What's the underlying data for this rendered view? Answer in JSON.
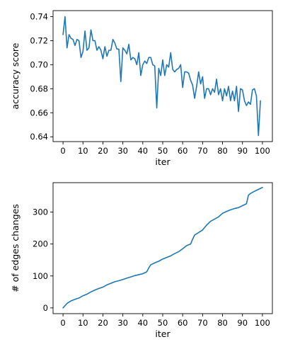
{
  "colors": {
    "series": "#1f77b4"
  },
  "chart_data": [
    {
      "type": "line",
      "xlabel": "iter",
      "ylabel": "accuracy score",
      "xlim": [
        -5,
        105
      ],
      "ylim": [
        0.636,
        0.745
      ],
      "xticks": [
        0,
        10,
        20,
        30,
        40,
        50,
        60,
        70,
        80,
        90,
        100
      ],
      "yticks": [
        0.64,
        0.66,
        0.68,
        0.7,
        0.72,
        0.74
      ],
      "ytick_labels": [
        "0.64",
        "0.66",
        "0.68",
        "0.70",
        "0.72",
        "0.74"
      ],
      "grid": false,
      "series": [
        {
          "x": [
            0,
            1,
            2,
            3,
            4,
            5,
            6,
            7,
            8,
            9,
            10,
            11,
            12,
            13,
            14,
            15,
            16,
            17,
            18,
            19,
            20,
            21,
            22,
            23,
            24,
            25,
            26,
            27,
            28,
            29,
            30,
            31,
            32,
            33,
            34,
            35,
            36,
            37,
            38,
            39,
            40,
            41,
            42,
            43,
            44,
            45,
            46,
            47,
            48,
            49,
            50,
            51,
            52,
            53,
            54,
            55,
            56,
            57,
            58,
            59,
            60,
            61,
            62,
            63,
            64,
            65,
            66,
            67,
            68,
            69,
            70,
            71,
            72,
            73,
            74,
            75,
            76,
            77,
            78,
            79,
            80,
            81,
            82,
            83,
            84,
            85,
            86,
            87,
            88,
            89,
            90,
            91,
            92,
            93,
            94,
            95,
            96,
            97,
            98,
            99,
            100
          ],
          "values": [
            0.725,
            0.74,
            0.714,
            0.725,
            0.722,
            0.721,
            0.716,
            0.721,
            0.72,
            0.706,
            0.711,
            0.728,
            0.712,
            0.714,
            0.729,
            0.72,
            0.72,
            0.712,
            0.715,
            0.712,
            0.705,
            0.715,
            0.707,
            0.712,
            0.712,
            0.721,
            0.718,
            0.713,
            0.713,
            0.686,
            0.714,
            0.712,
            0.709,
            0.717,
            0.704,
            0.706,
            0.705,
            0.7,
            0.71,
            0.691,
            0.7,
            0.703,
            0.701,
            0.706,
            0.706,
            0.7,
            0.699,
            0.664,
            0.697,
            0.691,
            0.704,
            0.691,
            0.7,
            0.698,
            0.71,
            0.696,
            0.694,
            0.696,
            0.697,
            0.7,
            0.681,
            0.694,
            0.694,
            0.693,
            0.687,
            0.683,
            0.672,
            0.682,
            0.694,
            0.684,
            0.69,
            0.672,
            0.68,
            0.68,
            0.675,
            0.68,
            0.677,
            0.688,
            0.675,
            0.68,
            0.67,
            0.68,
            0.674,
            0.682,
            0.67,
            0.678,
            0.67,
            0.682,
            0.661,
            0.68,
            0.679,
            0.67,
            0.666,
            0.669,
            0.667,
            0.679,
            0.68,
            0.674,
            0.641,
            0.67,
            null
          ]
        }
      ]
    },
    {
      "type": "line",
      "xlabel": "iter",
      "ylabel": "# of edges changes",
      "xlim": [
        -5,
        105
      ],
      "ylim": [
        -18,
        392
      ],
      "xticks": [
        0,
        10,
        20,
        30,
        40,
        50,
        60,
        70,
        80,
        90,
        100
      ],
      "yticks": [
        0,
        100,
        200,
        300
      ],
      "ytick_labels": [
        "0",
        "100",
        "200",
        "300"
      ],
      "grid": false,
      "series": [
        {
          "x": [
            0,
            2,
            4,
            6,
            8,
            10,
            12,
            14,
            16,
            18,
            20,
            22,
            24,
            26,
            28,
            30,
            32,
            34,
            36,
            38,
            40,
            42,
            43,
            44,
            46,
            48,
            50,
            52,
            54,
            56,
            58,
            60,
            62,
            64,
            65,
            66,
            68,
            70,
            72,
            74,
            76,
            78,
            80,
            82,
            84,
            86,
            88,
            90,
            92,
            93,
            94,
            96,
            98,
            100
          ],
          "values": [
            0,
            14,
            22,
            27,
            31,
            38,
            43,
            50,
            56,
            61,
            65,
            72,
            77,
            82,
            85,
            89,
            93,
            97,
            101,
            104,
            107,
            113,
            125,
            135,
            141,
            146,
            153,
            158,
            163,
            170,
            176,
            185,
            195,
            200,
            215,
            228,
            236,
            244,
            259,
            271,
            278,
            285,
            296,
            302,
            307,
            311,
            314,
            320,
            326,
            353,
            358,
            365,
            371,
            377
          ]
        }
      ]
    }
  ]
}
